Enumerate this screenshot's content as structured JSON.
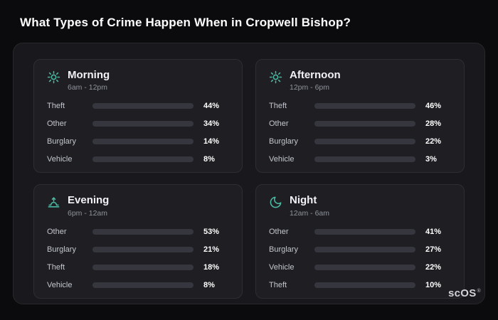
{
  "page": {
    "title": "What Types of Crime Happen When in Cropwell Bishop?"
  },
  "logo": {
    "text": "scOS",
    "reg": "®"
  },
  "colors": {
    "theft": "#a55bdd",
    "other": "#6d7f93",
    "burglary": "#e8832a",
    "vehicle": "#3f83f8",
    "icon_accent": "#49b9a2"
  },
  "chart_data": [
    {
      "type": "bar",
      "title": "Morning",
      "subtitle": "6am - 12pm",
      "icon": "sun-icon",
      "categories": [
        "Theft",
        "Other",
        "Burglary",
        "Vehicle"
      ],
      "values": [
        44,
        34,
        14,
        8
      ],
      "value_labels": [
        "44%",
        "34%",
        "14%",
        "8%"
      ],
      "bar_colors": [
        "#a55bdd",
        "#6d7f93",
        "#e8832a",
        "#3f83f8"
      ],
      "xlim": [
        0,
        60
      ]
    },
    {
      "type": "bar",
      "title": "Afternoon",
      "subtitle": "12pm - 6pm",
      "icon": "sun-icon",
      "categories": [
        "Theft",
        "Other",
        "Burglary",
        "Vehicle"
      ],
      "values": [
        46,
        28,
        22,
        3
      ],
      "value_labels": [
        "46%",
        "28%",
        "22%",
        "3%"
      ],
      "bar_colors": [
        "#a55bdd",
        "#6d7f93",
        "#e8832a",
        "#3f83f8"
      ],
      "xlim": [
        0,
        60
      ]
    },
    {
      "type": "bar",
      "title": "Evening",
      "subtitle": "6pm - 12am",
      "icon": "sunset-icon",
      "categories": [
        "Other",
        "Burglary",
        "Theft",
        "Vehicle"
      ],
      "values": [
        53,
        21,
        18,
        8
      ],
      "value_labels": [
        "53%",
        "21%",
        "18%",
        "8%"
      ],
      "bar_colors": [
        "#6d7f93",
        "#e8832a",
        "#a55bdd",
        "#3f83f8"
      ],
      "xlim": [
        0,
        60
      ]
    },
    {
      "type": "bar",
      "title": "Night",
      "subtitle": "12am - 6am",
      "icon": "moon-icon",
      "categories": [
        "Other",
        "Burglary",
        "Vehicle",
        "Theft"
      ],
      "values": [
        41,
        27,
        22,
        10
      ],
      "value_labels": [
        "41%",
        "27%",
        "22%",
        "10%"
      ],
      "bar_colors": [
        "#6d7f93",
        "#e8832a",
        "#3f83f8",
        "#a55bdd"
      ],
      "xlim": [
        0,
        60
      ]
    }
  ]
}
